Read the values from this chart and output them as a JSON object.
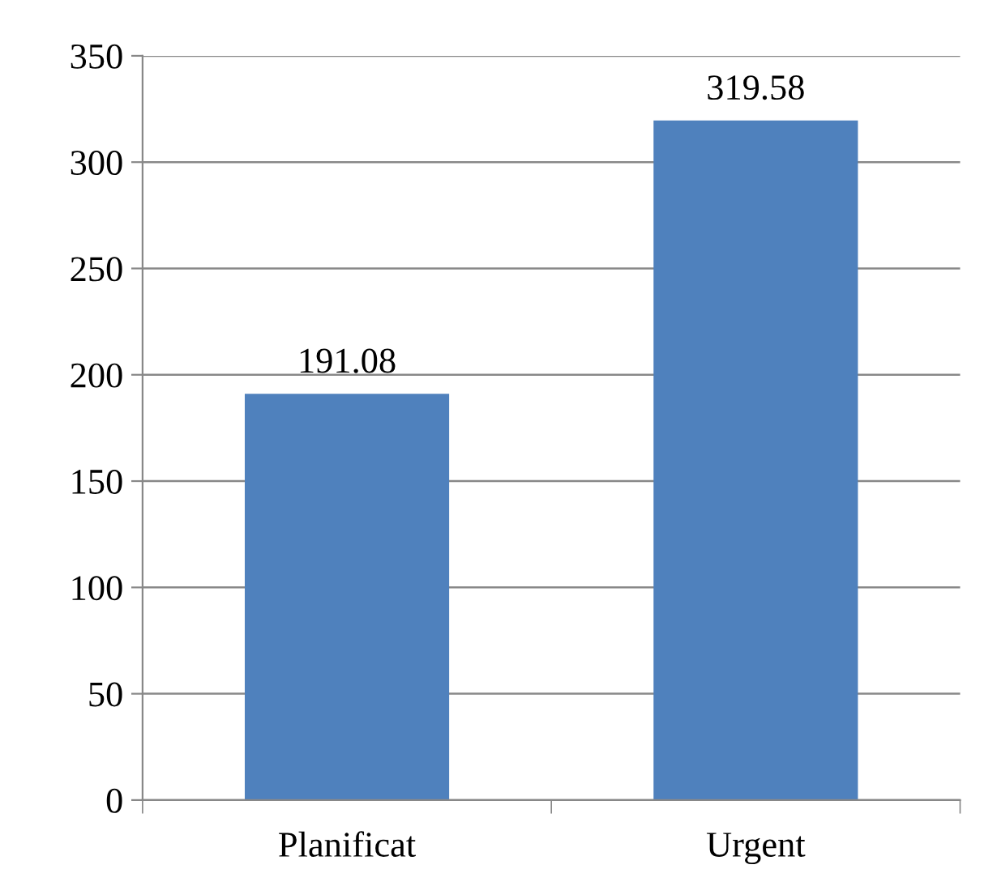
{
  "chart_data": {
    "type": "bar",
    "categories": [
      "Planificat",
      "Urgent"
    ],
    "values": [
      191.08,
      319.58
    ],
    "color": "#4f81bd",
    "ylim": [
      0,
      350
    ],
    "yticks": [
      0,
      50,
      100,
      150,
      200,
      250,
      300,
      350
    ],
    "grid": "y",
    "data_labels": true
  }
}
